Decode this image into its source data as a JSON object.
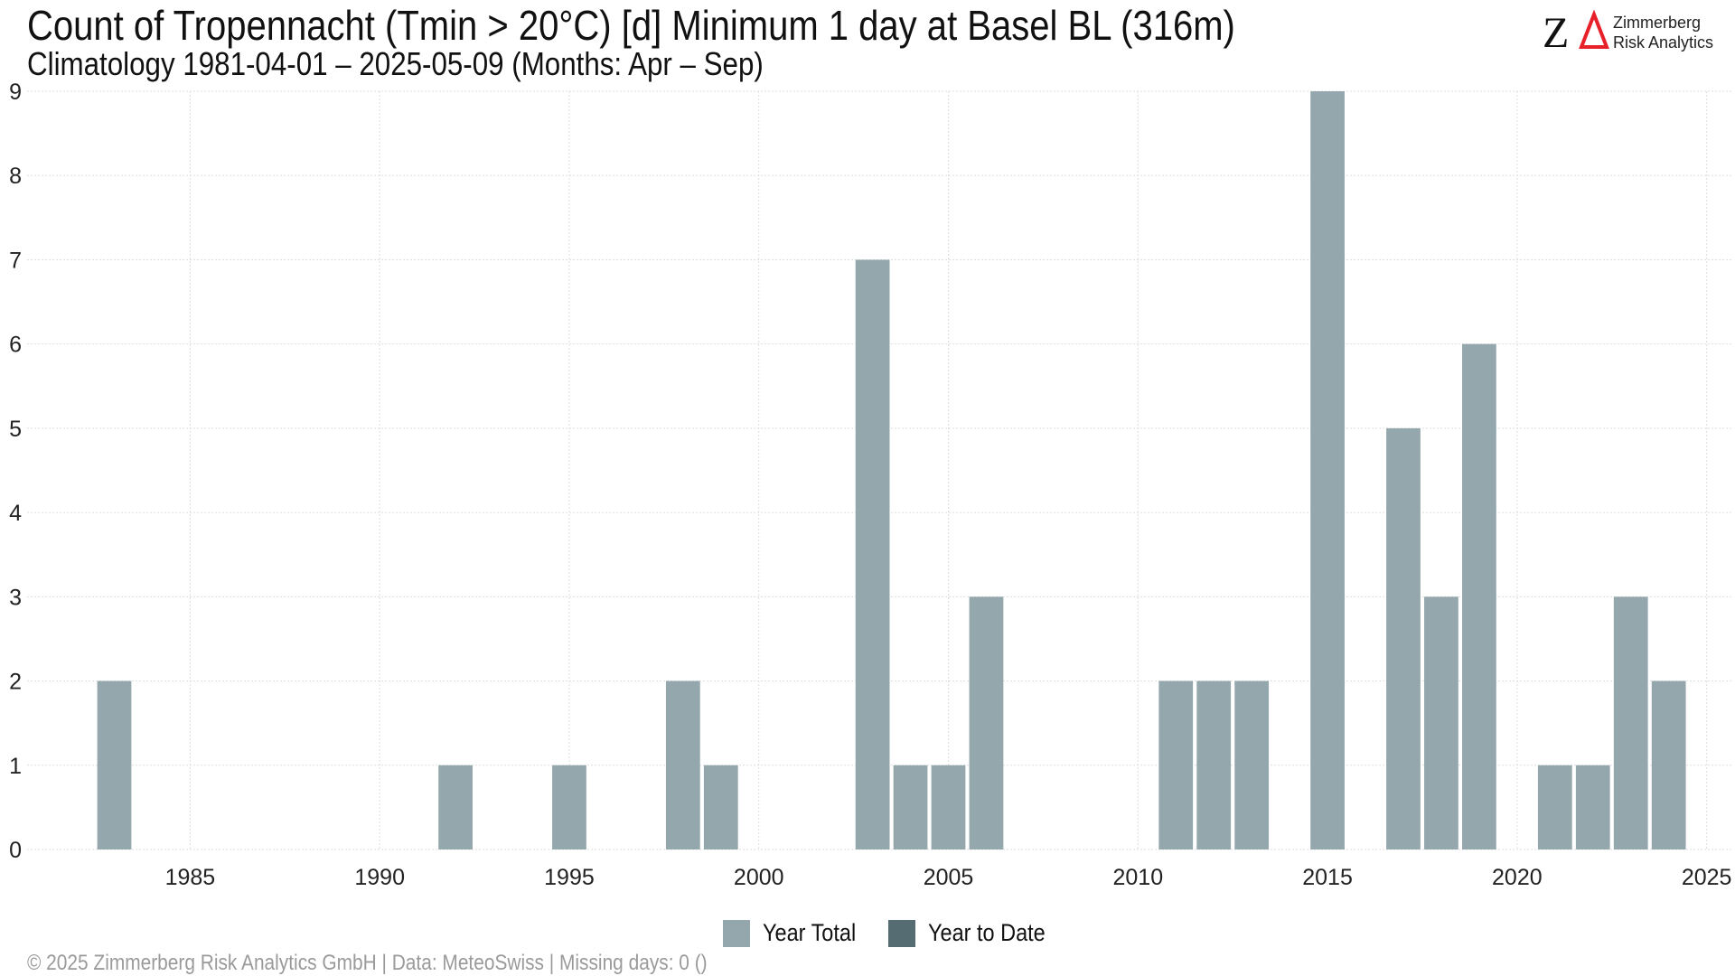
{
  "header": {
    "title": "Count of Tropennacht (Tmin > 20°C) [d] Minimum 1 day at Basel  BL (316m)",
    "subtitle": "Climatology 1981-04-01 – 2025-05-09 (Months: Apr – Sep)"
  },
  "logo": {
    "line1": "Zimmerberg",
    "line2": "Risk Analytics",
    "mark_color_z": "#111111",
    "mark_color_delta": "#e8202a"
  },
  "legend": {
    "items": [
      {
        "label": "Year Total",
        "color": "#94a7ad"
      },
      {
        "label": "Year to Date",
        "color": "#566c73"
      }
    ]
  },
  "footer": {
    "text": "©  2025 Zimmerberg Risk Analytics GmbH | Data: MeteoSwiss | Missing days: 0 ()"
  },
  "chart_data": {
    "type": "bar",
    "xlim": [
      1981,
      2025
    ],
    "ylim": [
      0,
      9
    ],
    "x_ticks": [
      1985,
      1990,
      1995,
      2000,
      2005,
      2010,
      2015,
      2020,
      2025
    ],
    "y_ticks": [
      0,
      1,
      2,
      3,
      4,
      5,
      6,
      7,
      8,
      9
    ],
    "grid": true,
    "legend_position": "bottom",
    "series": [
      {
        "name": "Year Total",
        "color": "#94a7ad",
        "points": [
          {
            "x": 1983,
            "y": 2
          },
          {
            "x": 1992,
            "y": 1
          },
          {
            "x": 1995,
            "y": 1
          },
          {
            "x": 1998,
            "y": 2
          },
          {
            "x": 1999,
            "y": 1
          },
          {
            "x": 2003,
            "y": 7
          },
          {
            "x": 2004,
            "y": 1
          },
          {
            "x": 2005,
            "y": 1
          },
          {
            "x": 2006,
            "y": 3
          },
          {
            "x": 2011,
            "y": 2
          },
          {
            "x": 2012,
            "y": 2
          },
          {
            "x": 2013,
            "y": 2
          },
          {
            "x": 2015,
            "y": 9
          },
          {
            "x": 2017,
            "y": 5
          },
          {
            "x": 2018,
            "y": 3
          },
          {
            "x": 2019,
            "y": 6
          },
          {
            "x": 2021,
            "y": 1
          },
          {
            "x": 2022,
            "y": 1
          },
          {
            "x": 2023,
            "y": 3
          },
          {
            "x": 2024,
            "y": 2
          }
        ]
      },
      {
        "name": "Year to Date",
        "color": "#566c73",
        "points": []
      }
    ]
  }
}
